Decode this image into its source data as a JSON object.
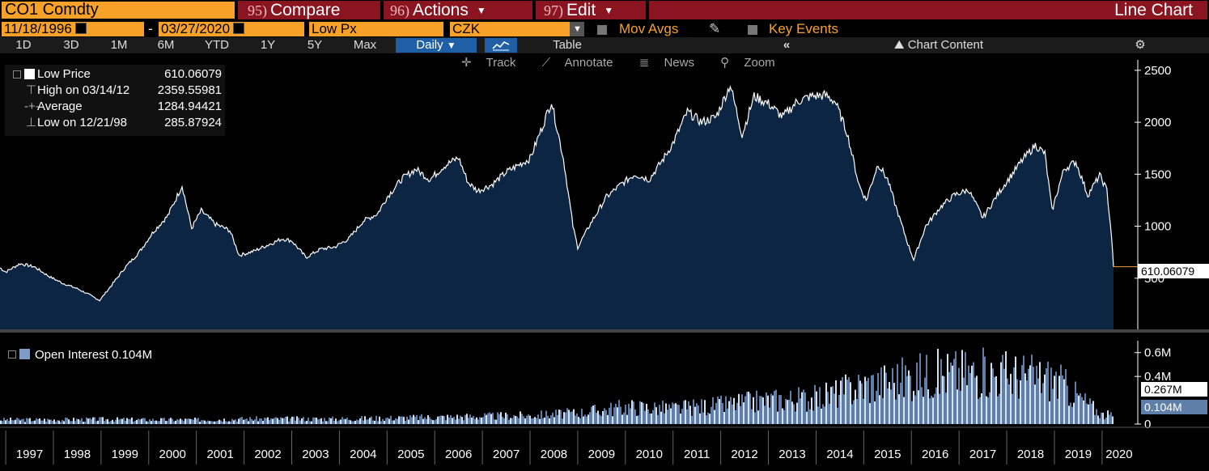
{
  "header": {
    "ticker": "CO1 Comdty",
    "compare": {
      "num": "95)",
      "label": "Compare"
    },
    "actions": {
      "num": "96)",
      "label": "Actions"
    },
    "edit": {
      "num": "97)",
      "label": "Edit"
    },
    "title": "Line Chart"
  },
  "controls": {
    "start_date": "11/18/1996",
    "dash": "-",
    "end_date": "03/27/2020",
    "field": "Low Px",
    "currency": "CZK",
    "mov_avgs": "Mov Avgs",
    "key_events": "Key Events"
  },
  "tabs": {
    "periods": [
      "1D",
      "3D",
      "1M",
      "6M",
      "YTD",
      "1Y",
      "5Y",
      "Max"
    ],
    "frequency": "Daily",
    "table": "Table",
    "collapse": "«",
    "chart_content": "Chart Content"
  },
  "toolbar": {
    "track": "Track",
    "annotate": "Annotate",
    "news": "News",
    "zoom": "Zoom"
  },
  "legend": {
    "low_price": {
      "label": "Low Price",
      "value": "610.06079"
    },
    "high": {
      "label": "High on 03/14/12",
      "value": "2359.55981"
    },
    "average": {
      "label": "Average",
      "value": "1284.94421"
    },
    "low": {
      "label": "Low on 12/21/98",
      "value": "285.87924"
    }
  },
  "oi_legend": {
    "label": "Open Interest 0.104M"
  },
  "last_price_tag": "610.06079",
  "oi_tags": {
    "upper": "0.267M",
    "lower": "0.104M"
  },
  "colors": {
    "orange": "#f7a128",
    "red": "#8a1420",
    "blue": "#1e5fa6",
    "area": "#0b2542",
    "oi": "#5f7ea8"
  },
  "chart_data": [
    {
      "type": "area",
      "title": "",
      "series": [
        {
          "name": "Low Price",
          "values": [
            [
              1996.88,
              600
            ],
            [
              1997.0,
              560
            ],
            [
              1997.3,
              640
            ],
            [
              1997.6,
              610
            ],
            [
              1997.9,
              520
            ],
            [
              1998.2,
              450
            ],
            [
              1998.5,
              400
            ],
            [
              1998.8,
              330
            ],
            [
              1998.97,
              286
            ],
            [
              1999.2,
              420
            ],
            [
              1999.5,
              600
            ],
            [
              1999.8,
              750
            ],
            [
              2000.1,
              950
            ],
            [
              2000.4,
              1100
            ],
            [
              2000.7,
              1390
            ],
            [
              2000.9,
              980
            ],
            [
              2001.1,
              1150
            ],
            [
              2001.4,
              1020
            ],
            [
              2001.7,
              960
            ],
            [
              2001.9,
              720
            ],
            [
              2002.2,
              760
            ],
            [
              2002.5,
              820
            ],
            [
              2002.8,
              880
            ],
            [
              2003.0,
              860
            ],
            [
              2003.3,
              700
            ],
            [
              2003.6,
              780
            ],
            [
              2003.9,
              800
            ],
            [
              2004.2,
              880
            ],
            [
              2004.5,
              1050
            ],
            [
              2004.8,
              1120
            ],
            [
              2005.0,
              1280
            ],
            [
              2005.3,
              1450
            ],
            [
              2005.6,
              1550
            ],
            [
              2005.9,
              1450
            ],
            [
              2006.2,
              1580
            ],
            [
              2006.5,
              1660
            ],
            [
              2006.7,
              1420
            ],
            [
              2006.9,
              1340
            ],
            [
              2007.2,
              1400
            ],
            [
              2007.5,
              1520
            ],
            [
              2007.8,
              1600
            ],
            [
              2008.0,
              1650
            ],
            [
              2008.25,
              1950
            ],
            [
              2008.45,
              2200
            ],
            [
              2008.7,
              1650
            ],
            [
              2008.9,
              1000
            ],
            [
              2009.0,
              800
            ],
            [
              2009.3,
              1050
            ],
            [
              2009.6,
              1280
            ],
            [
              2009.9,
              1400
            ],
            [
              2010.2,
              1500
            ],
            [
              2010.5,
              1450
            ],
            [
              2010.8,
              1650
            ],
            [
              2011.0,
              1800
            ],
            [
              2011.3,
              2100
            ],
            [
              2011.6,
              2000
            ],
            [
              2011.9,
              2050
            ],
            [
              2012.2,
              2360
            ],
            [
              2012.45,
              1880
            ],
            [
              2012.7,
              2250
            ],
            [
              2013.0,
              2180
            ],
            [
              2013.3,
              2050
            ],
            [
              2013.6,
              2200
            ],
            [
              2013.9,
              2250
            ],
            [
              2014.2,
              2260
            ],
            [
              2014.4,
              2200
            ],
            [
              2014.65,
              1900
            ],
            [
              2014.9,
              1400
            ],
            [
              2015.05,
              1250
            ],
            [
              2015.3,
              1600
            ],
            [
              2015.5,
              1450
            ],
            [
              2015.7,
              1150
            ],
            [
              2015.95,
              800
            ],
            [
              2016.05,
              680
            ],
            [
              2016.3,
              1000
            ],
            [
              2016.6,
              1180
            ],
            [
              2016.9,
              1300
            ],
            [
              2017.2,
              1350
            ],
            [
              2017.5,
              1080
            ],
            [
              2017.8,
              1300
            ],
            [
              2018.0,
              1430
            ],
            [
              2018.3,
              1620
            ],
            [
              2018.6,
              1780
            ],
            [
              2018.8,
              1700
            ],
            [
              2018.95,
              1150
            ],
            [
              2019.2,
              1550
            ],
            [
              2019.45,
              1620
            ],
            [
              2019.7,
              1300
            ],
            [
              2019.95,
              1490
            ],
            [
              2020.1,
              1350
            ],
            [
              2020.2,
              900
            ],
            [
              2020.24,
              610
            ]
          ]
        }
      ],
      "ylim": [
        0,
        2600
      ],
      "y_ticks": [
        500,
        1000,
        1500,
        2000,
        2500
      ],
      "x_ticks": [
        "1997",
        "1998",
        "1999",
        "2000",
        "2001",
        "2002",
        "2003",
        "2004",
        "2005",
        "2006",
        "2007",
        "2008",
        "2009",
        "2010",
        "2011",
        "2012",
        "2013",
        "2014",
        "2015",
        "2016",
        "2017",
        "2018",
        "2019",
        "2020"
      ],
      "grid": false
    },
    {
      "type": "bar",
      "series": [
        {
          "name": "Open Interest",
          "values": [
            [
              1997,
              0.05
            ],
            [
              1998,
              0.05
            ],
            [
              1999,
              0.055
            ],
            [
              2000,
              0.05
            ],
            [
              2001,
              0.05
            ],
            [
              2002,
              0.06
            ],
            [
              2003,
              0.06
            ],
            [
              2004,
              0.06
            ],
            [
              2005,
              0.07
            ],
            [
              2006,
              0.08
            ],
            [
              2007,
              0.09
            ],
            [
              2008,
              0.1
            ],
            [
              2009,
              0.13
            ],
            [
              2010,
              0.2
            ],
            [
              2011,
              0.18
            ],
            [
              2012,
              0.22
            ],
            [
              2013,
              0.28
            ],
            [
              2014,
              0.3
            ],
            [
              2015,
              0.45
            ],
            [
              2016,
              0.55
            ],
            [
              2017,
              0.6
            ],
            [
              2018,
              0.58
            ],
            [
              2019,
              0.52
            ],
            [
              2020,
              0.104
            ]
          ]
        }
      ],
      "y_ticks_labels": [
        "0.6M",
        "0.4M",
        "0"
      ],
      "y_ticks": [
        0.6,
        0.4,
        0
      ],
      "ylim": [
        0,
        0.7
      ]
    }
  ]
}
